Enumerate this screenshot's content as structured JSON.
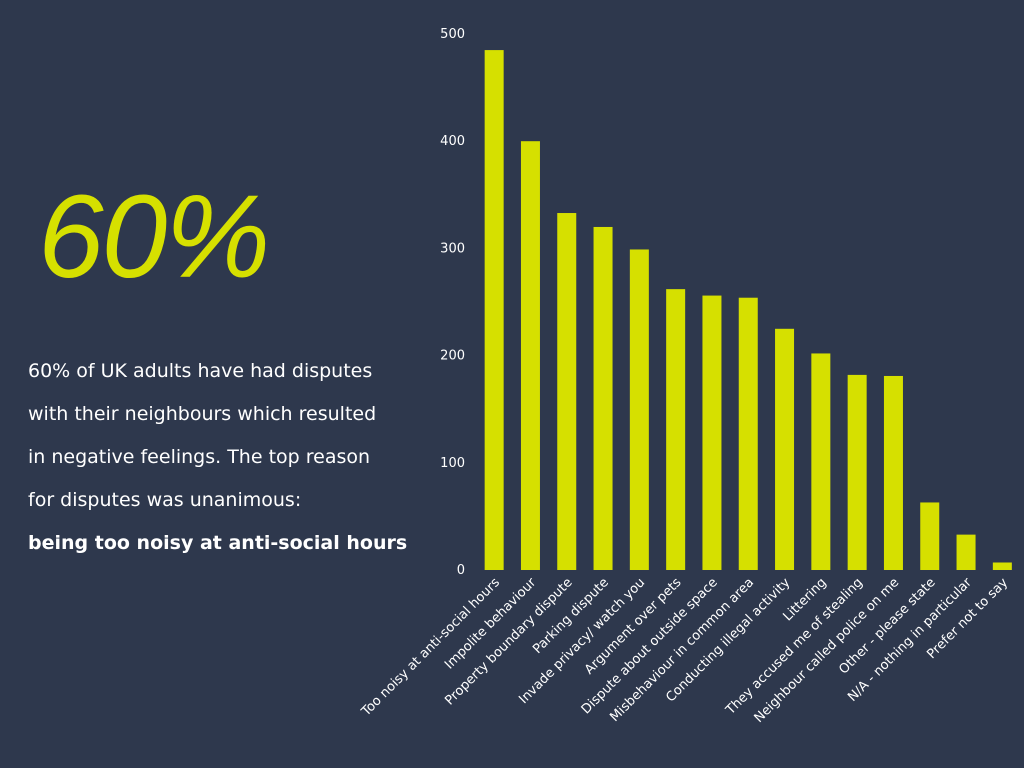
{
  "headline": {
    "stat": "60%",
    "lines": [
      "60% of UK adults have had disputes",
      "with their neighbours which resulted",
      "in negative feelings. The top reason",
      "for disputes was unanimous:"
    ],
    "emphasis": "being too noisy at anti-social hours"
  },
  "colors": {
    "background": "#2e384d",
    "accent": "#d6e000",
    "text": "#ffffff"
  },
  "chart_data": {
    "type": "bar",
    "categories": [
      "Too noisy at anti-social hours",
      "Impolite behaviour",
      "Property boundary dispute",
      "Parking dispute",
      "Invade privacy/ watch you",
      "Argument over pets",
      "Dispute about outside space",
      "Misbehaviour in common area",
      "Conducting illegal activity",
      "Littering",
      "They accused me of stealing",
      "Neighbour called police on me",
      "Other - please state",
      "N/A - nothing in particular",
      "Prefer not to say"
    ],
    "values": [
      485,
      400,
      333,
      320,
      299,
      262,
      256,
      254,
      225,
      202,
      182,
      181,
      63,
      33,
      7
    ],
    "ylim": [
      0,
      500
    ],
    "yticks": [
      0,
      100,
      200,
      300,
      400,
      500
    ],
    "grid": false,
    "legend": "none",
    "bar_color": "#d6e000"
  }
}
